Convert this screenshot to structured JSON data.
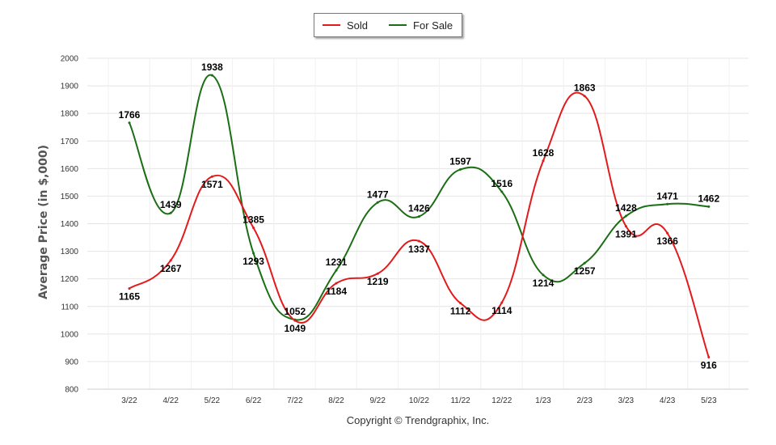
{
  "legend": {
    "series_0_label": "Sold",
    "series_1_label": "For Sale"
  },
  "footer": {
    "copyright": "Copyright © Trendgraphix, Inc."
  },
  "chart_data": {
    "type": "line",
    "title": "",
    "xlabel": "",
    "ylabel": "Average Price (in $,000)",
    "ylim": [
      800,
      2000
    ],
    "yticks": [
      800,
      900,
      1000,
      1100,
      1200,
      1300,
      1400,
      1500,
      1600,
      1700,
      1800,
      1900,
      2000
    ],
    "grid": true,
    "legend_position": "top-center",
    "smooth": true,
    "categories": [
      "3/22",
      "4/22",
      "5/22",
      "6/22",
      "7/22",
      "8/22",
      "9/22",
      "10/22",
      "11/22",
      "12/22",
      "1/23",
      "2/23",
      "3/23",
      "4/23",
      "5/23"
    ],
    "series": [
      {
        "name": "Sold",
        "color": "#e31a1c",
        "values": [
          1165,
          1267,
          1571,
          1385,
          1049,
          1184,
          1219,
          1337,
          1112,
          1114,
          1628,
          1863,
          1391,
          1366,
          916
        ]
      },
      {
        "name": "For Sale",
        "color": "#1a6e14",
        "values": [
          1766,
          1439,
          1938,
          1293,
          1052,
          1231,
          1477,
          1426,
          1597,
          1516,
          1214,
          1257,
          1428,
          1471,
          1462
        ]
      }
    ]
  }
}
